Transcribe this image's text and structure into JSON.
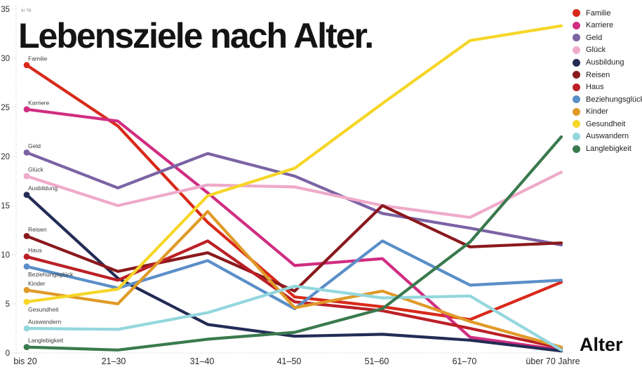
{
  "title": "Lebensziele nach Alter.",
  "unit_label": "in %",
  "x_axis_title": "Alter",
  "chart_data": {
    "type": "line",
    "categories": [
      "bis 20",
      "21–30",
      "31–40",
      "41–50",
      "51–60",
      "61–70",
      "über 70 Jahre"
    ],
    "yticks": [
      0,
      5,
      10,
      15,
      20,
      25,
      30,
      35
    ],
    "ylim": [
      0,
      35
    ],
    "grid": false,
    "legend_position": "top-right",
    "series": [
      {
        "name": "Familie",
        "color": "#d8291a",
        "values": [
          29.3,
          23.1,
          13.3,
          5.7,
          4.7,
          3.4,
          7.2
        ]
      },
      {
        "name": "Karriere",
        "color": "#d12d82",
        "values": [
          24.8,
          23.6,
          16.3,
          8.9,
          9.6,
          1.6,
          0.3
        ]
      },
      {
        "name": "Geld",
        "color": "#7b63a4",
        "values": [
          20.4,
          16.8,
          20.3,
          18.0,
          14.2,
          12.7,
          11.0
        ]
      },
      {
        "name": "Glück",
        "color": "#efaac9",
        "values": [
          18.0,
          15.0,
          17.1,
          16.9,
          15.0,
          13.8,
          18.4
        ]
      },
      {
        "name": "Ausbildung",
        "color": "#232c55",
        "values": [
          16.1,
          7.6,
          2.9,
          1.7,
          1.9,
          1.3,
          0.2
        ]
      },
      {
        "name": "Reisen",
        "color": "#8a191d",
        "values": [
          11.9,
          8.3,
          10.2,
          6.3,
          15.0,
          10.8,
          11.2
        ]
      },
      {
        "name": "Haus",
        "color": "#bb2026",
        "values": [
          9.8,
          7.4,
          11.4,
          5.2,
          4.3,
          2.5,
          0.5
        ]
      },
      {
        "name": "Beziehungsglück",
        "color": "#5a8fc8",
        "values": [
          8.8,
          6.6,
          9.4,
          4.5,
          11.4,
          6.9,
          7.4
        ]
      },
      {
        "name": "Kinder",
        "color": "#e09a28",
        "values": [
          6.4,
          5.0,
          14.4,
          4.6,
          6.3,
          3.2,
          0.6
        ]
      },
      {
        "name": "Gesundheit",
        "color": "#f6d627",
        "values": [
          5.2,
          6.5,
          16.0,
          18.8,
          25.4,
          31.8,
          33.3
        ]
      },
      {
        "name": "Auswandern",
        "color": "#93d7de",
        "values": [
          2.5,
          2.4,
          4.1,
          6.8,
          5.6,
          5.8,
          0.3
        ]
      },
      {
        "name": "Langlebigkeit",
        "color": "#3a7a4e",
        "values": [
          0.6,
          0.3,
          1.4,
          2.1,
          4.5,
          11.3,
          22.0
        ]
      }
    ]
  }
}
